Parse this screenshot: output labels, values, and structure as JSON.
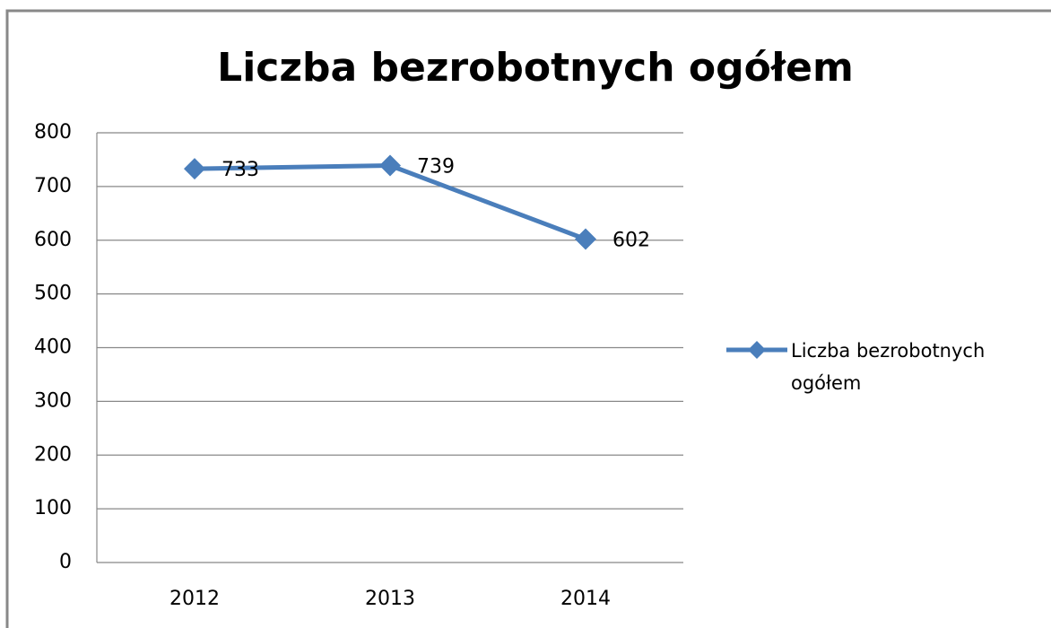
{
  "chart_data": {
    "type": "line",
    "title": "Liczba bezrobotnych ogółem",
    "categories": [
      "2012",
      "2013",
      "2014"
    ],
    "series": [
      {
        "name": "Liczba bezrobotnych ogółem",
        "color": "#4a7ebb",
        "values": [
          733,
          739,
          602
        ]
      }
    ],
    "ylim": [
      0,
      800
    ],
    "yticks": [
      0,
      100,
      200,
      300,
      400,
      500,
      600,
      700,
      800
    ],
    "grid": true,
    "legend": "right",
    "data_labels": true
  }
}
